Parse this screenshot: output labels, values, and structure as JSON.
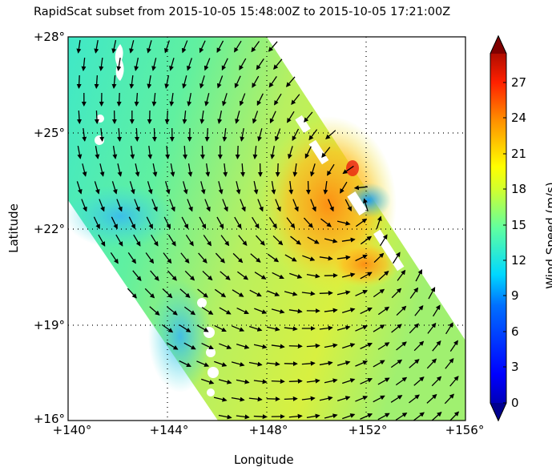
{
  "chart_data": {
    "type": "heatmap",
    "subtype": "wind vector quiver over scatterometer swath (map)",
    "title": "RapidScat subset from 2015-10-05 15:48:00Z to 2015-10-05 17:21:00Z",
    "xlabel": "Longitude",
    "ylabel": "Latitude",
    "xlim": [
      140,
      156
    ],
    "ylim": [
      16,
      28
    ],
    "x_ticks": [
      "+140°",
      "+144°",
      "+148°",
      "+152°",
      "+156°"
    ],
    "y_ticks": [
      "+28°",
      "+25°",
      "+22°",
      "+19°",
      "+16°"
    ],
    "grid": "dotted at 144°, 148°, 152° lon and 25°, 22°, 19° lat",
    "colorbar": {
      "label": "Wind Speed (m/s)",
      "range": [
        0,
        30
      ],
      "extend": "both",
      "colormap": "jet",
      "ticks": [
        "0",
        "3",
        "6",
        "9",
        "12",
        "15",
        "18",
        "21",
        "24",
        "27"
      ]
    },
    "features": {
      "swath_orientation": "diagonal, NW-SE edge on right",
      "cyclone_center_approx": {
        "lon": 151.5,
        "lat": 23
      },
      "max_wind_region": "orange/red 21-27 m/s around 149-152°E, 21-25°N",
      "low_wind_eye": "blue ~8-10 m/s near 151.5°E, 23°N",
      "background_winds": "green/cyan 10-15 m/s"
    }
  },
  "labels": {
    "title": "RapidScat subset from 2015-10-05 15:48:00Z to 2015-10-05 17:21:00Z",
    "xlabel": "Longitude",
    "ylabel": "Latitude",
    "cblabel": "Wind Speed (m/s)"
  },
  "xticks": [
    "+140°",
    "+144°",
    "+148°",
    "+152°",
    "+156°"
  ],
  "yticks": [
    "+28°",
    "+25°",
    "+22°",
    "+19°",
    "+16°"
  ],
  "cbticks": [
    "27",
    "24",
    "21",
    "18",
    "15",
    "12",
    "9",
    "6",
    "3",
    "0"
  ]
}
